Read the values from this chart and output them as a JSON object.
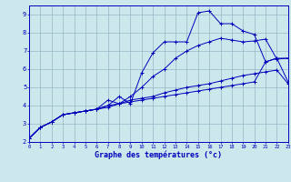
{
  "xlabel": "Graphe des températures (°c)",
  "bg_color": "#cce8ed",
  "line_color": "#0000bb",
  "grid_color": "#88aabb",
  "xlim": [
    0,
    23
  ],
  "ylim": [
    2,
    9.5
  ],
  "xticks": [
    0,
    1,
    2,
    3,
    4,
    5,
    6,
    7,
    8,
    9,
    10,
    11,
    12,
    13,
    14,
    15,
    16,
    17,
    18,
    19,
    20,
    21,
    22,
    23
  ],
  "yticks": [
    2,
    3,
    4,
    5,
    6,
    7,
    8,
    9
  ],
  "series": [
    {
      "x": [
        0,
        1,
        2,
        3,
        4,
        5,
        6,
        7,
        8,
        9,
        10,
        11,
        12,
        13,
        14,
        15,
        16,
        17,
        18,
        19,
        20,
        21,
        22,
        23
      ],
      "y": [
        2.2,
        2.8,
        3.1,
        3.5,
        3.6,
        3.7,
        3.8,
        3.9,
        4.1,
        4.3,
        4.4,
        4.5,
        4.7,
        4.85,
        5.0,
        5.1,
        5.2,
        5.35,
        5.5,
        5.65,
        5.75,
        5.85,
        5.95,
        5.2
      ]
    },
    {
      "x": [
        0,
        1,
        2,
        3,
        4,
        5,
        6,
        7,
        8,
        9,
        10,
        11,
        12,
        13,
        14,
        15,
        16,
        17,
        18,
        19,
        20,
        21,
        22,
        23
      ],
      "y": [
        2.2,
        2.8,
        3.1,
        3.5,
        3.6,
        3.7,
        3.8,
        4.0,
        4.1,
        4.5,
        5.0,
        5.6,
        6.0,
        6.6,
        7.0,
        7.3,
        7.5,
        7.7,
        7.6,
        7.5,
        7.55,
        7.65,
        6.55,
        6.6
      ]
    },
    {
      "x": [
        0,
        1,
        2,
        3,
        4,
        5,
        6,
        7,
        8,
        9,
        10,
        11,
        12,
        13,
        14,
        15,
        16,
        17,
        18,
        19,
        20,
        21,
        22,
        23
      ],
      "y": [
        2.2,
        2.8,
        3.1,
        3.5,
        3.6,
        3.7,
        3.8,
        4.0,
        4.5,
        4.1,
        5.8,
        6.9,
        7.5,
        7.5,
        7.5,
        9.1,
        9.2,
        8.5,
        8.5,
        8.1,
        7.9,
        6.4,
        6.6,
        5.3
      ]
    },
    {
      "x": [
        0,
        1,
        2,
        3,
        4,
        5,
        6,
        7,
        8,
        9,
        10,
        11,
        12,
        13,
        14,
        15,
        16,
        17,
        18,
        19,
        20,
        21,
        22,
        23
      ],
      "y": [
        2.2,
        2.8,
        3.1,
        3.5,
        3.6,
        3.7,
        3.8,
        4.3,
        4.1,
        4.2,
        4.3,
        4.4,
        4.5,
        4.6,
        4.7,
        4.8,
        4.9,
        5.0,
        5.1,
        5.2,
        5.3,
        6.4,
        6.6,
        6.6
      ]
    }
  ]
}
